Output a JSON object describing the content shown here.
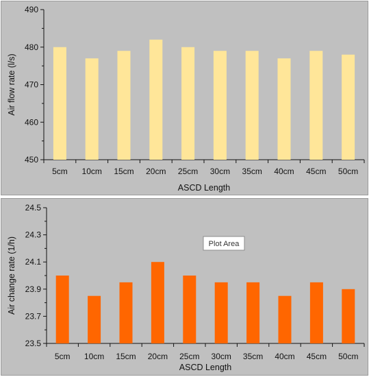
{
  "chart_data": [
    {
      "type": "bar",
      "categories": [
        "5cm",
        "10cm",
        "15cm",
        "20cm",
        "25cm",
        "30cm",
        "35cm",
        "40cm",
        "45cm",
        "50cm"
      ],
      "values": [
        480,
        477,
        479,
        482,
        480,
        479,
        479,
        477,
        479,
        478
      ],
      "xlabel": "ASCD Length",
      "ylabel": "Air flow rate (l/s)",
      "ylim": [
        450,
        490
      ],
      "yticks": [
        "450",
        "460",
        "470",
        "480",
        "490"
      ],
      "bar_color": "#ffe699",
      "grid": false
    },
    {
      "type": "bar",
      "categories": [
        "5cm",
        "10cm",
        "15cm",
        "20cm",
        "25cm",
        "30cm",
        "35cm",
        "40cm",
        "45cm",
        "50cm"
      ],
      "values": [
        24.0,
        23.85,
        23.95,
        24.1,
        24.0,
        23.95,
        23.95,
        23.85,
        23.95,
        23.9
      ],
      "xlabel": "ASCD Length",
      "ylabel": "Air change rate (1/h)",
      "ylim": [
        23.5,
        24.5
      ],
      "yticks": [
        "23.5",
        "23.7",
        "23.9",
        "24.1",
        "24.3",
        "24.5"
      ],
      "bar_color": "#ff6600",
      "grid": false,
      "tooltip": "Plot Area"
    }
  ]
}
